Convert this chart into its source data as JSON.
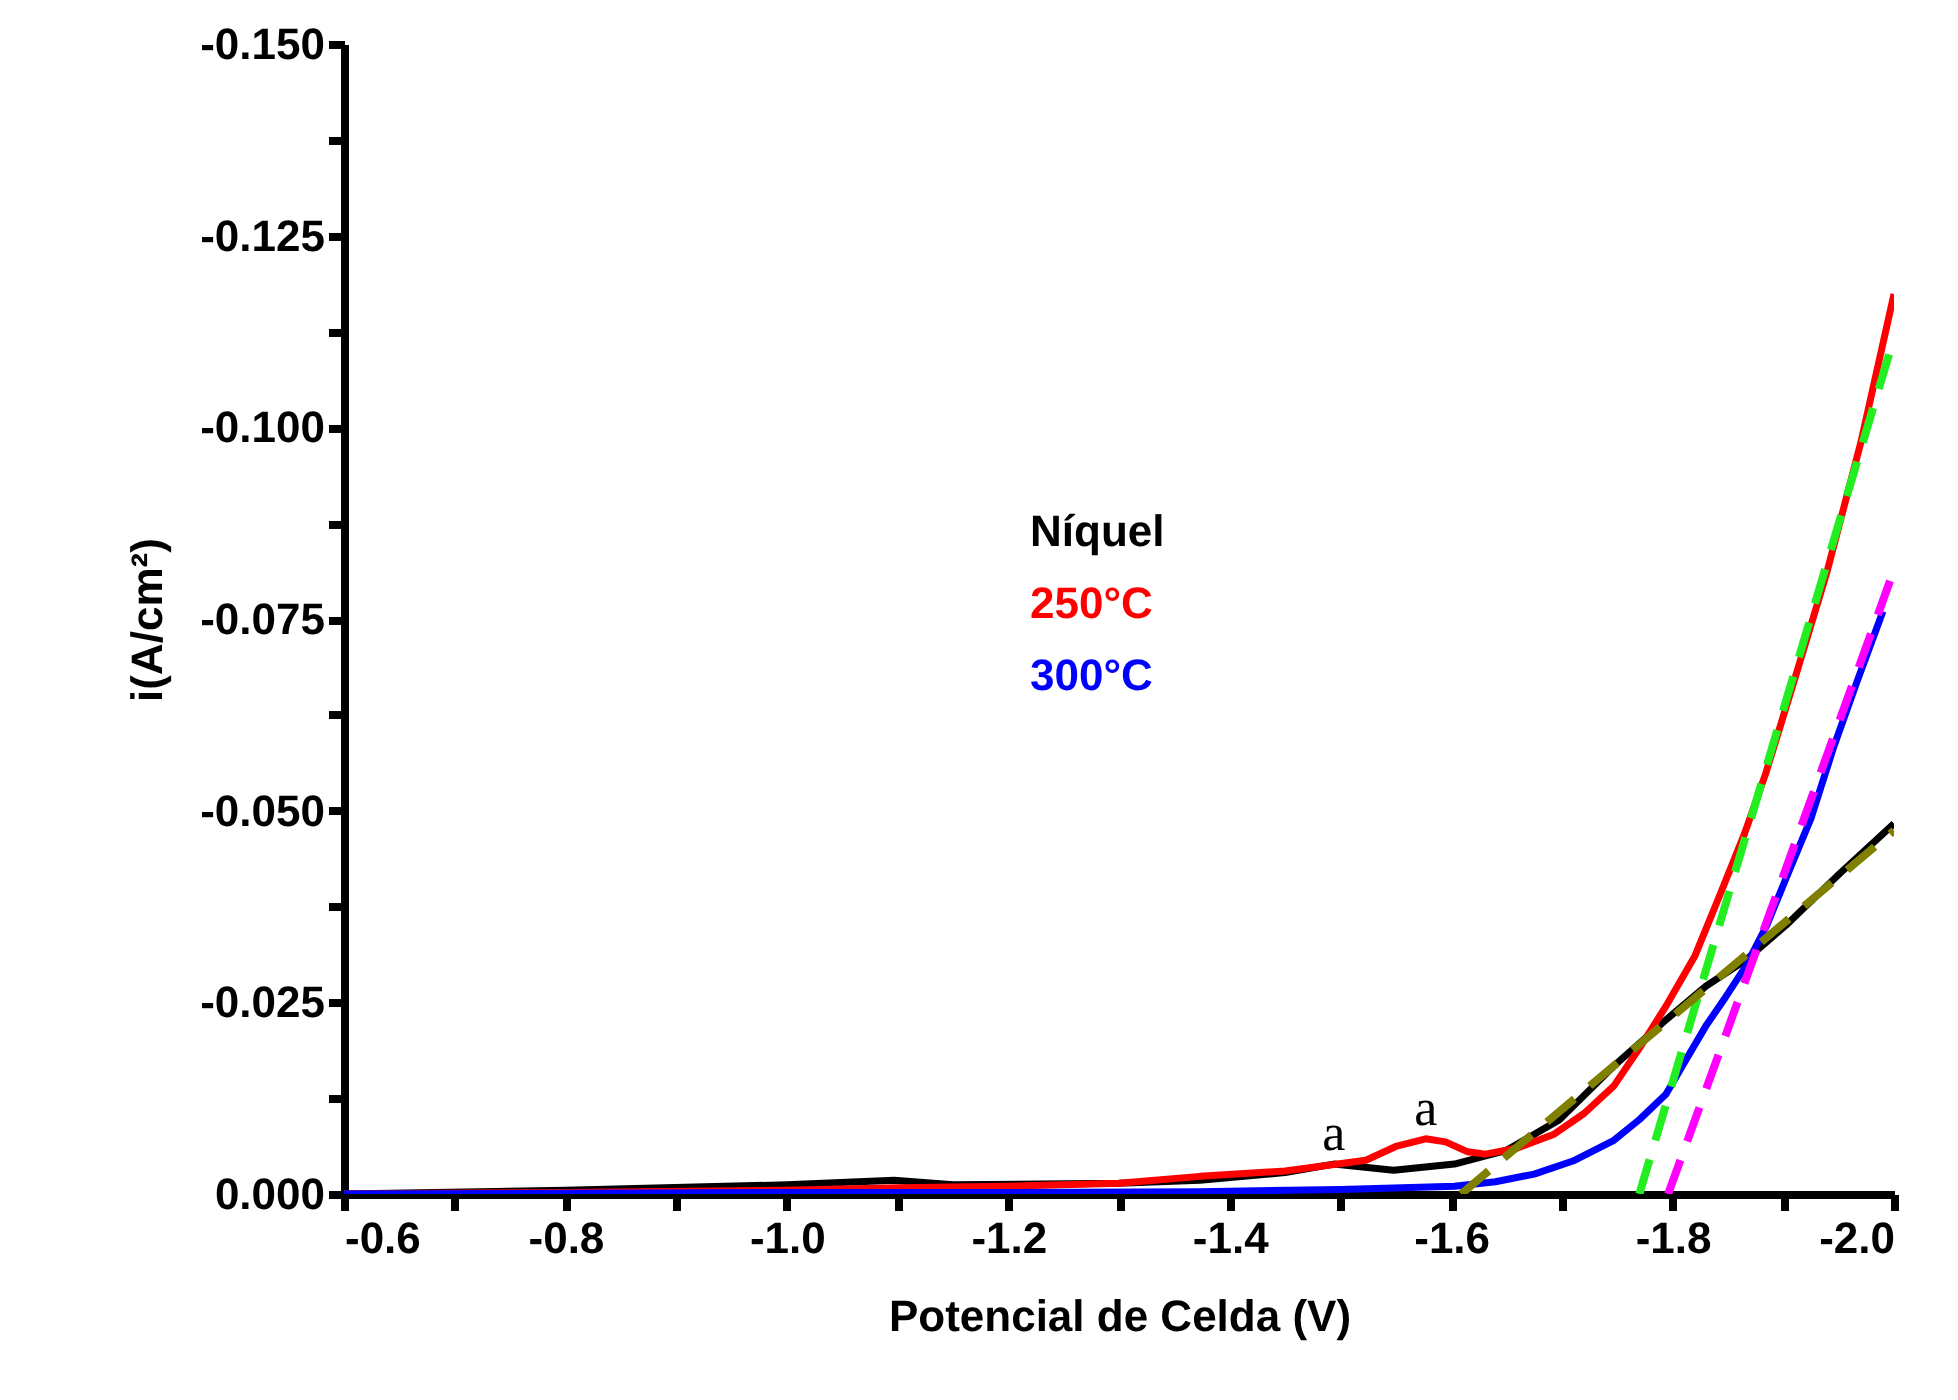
{
  "chart_data": {
    "type": "line",
    "xlabel": "Potencial de Celda (V)",
    "ylabel": "i(A/cm²)",
    "legend_title": "Níquel",
    "legend": "center",
    "line_style": "solid",
    "xlim": [
      -0.6,
      -2.0
    ],
    "ylim": [
      0,
      -0.15
    ],
    "xticks": [
      -0.6,
      {
        "value": -0.7,
        "label": null
      },
      -0.8,
      {
        "value": -0.9,
        "label": null
      },
      {
        "value": -1.0,
        "label": "-1.0"
      },
      {
        "value": -1.1,
        "label": null
      },
      -1.2,
      {
        "value": -1.3,
        "label": null
      },
      -1.4,
      {
        "value": -1.5,
        "label": null
      },
      -1.6,
      {
        "value": -1.7,
        "label": null
      },
      -1.8,
      {
        "value": -1.9,
        "label": null
      },
      {
        "value": -2.0,
        "label": "-2.0"
      }
    ],
    "yticks": [
      {
        "value": 0,
        "label": "0.000"
      },
      {
        "value": -0.0125,
        "label": null
      },
      -0.025,
      {
        "value": -0.0375,
        "label": null
      },
      {
        "value": -0.05,
        "label": "-0.050"
      },
      {
        "value": -0.0625,
        "label": null
      },
      -0.075,
      {
        "value": -0.0875,
        "label": null
      },
      {
        "value": -0.1,
        "label": "-0.100"
      },
      {
        "value": -0.1125,
        "label": null
      },
      -0.125,
      {
        "value": -0.1375,
        "label": null
      },
      {
        "value": -0.15,
        "label": "-0.150"
      }
    ],
    "series": [
      {
        "color": "#000000",
        "x": [
          -0.6,
          -0.8,
          -1.0,
          -1.097,
          -1.15,
          -1.3,
          -1.373,
          -1.45,
          -1.494,
          -1.548,
          -1.603,
          -1.65,
          -1.698,
          -1.747,
          -1.794,
          -1.83,
          -1.866,
          -1.902,
          -1.951,
          -2.0
        ],
        "values": [
          0,
          -0.0005,
          -0.0012,
          -0.0018,
          -0.0012,
          -0.0014,
          -0.0018,
          -0.0028,
          -0.0039,
          -0.0031,
          -0.0039,
          -0.0057,
          -0.0097,
          -0.0167,
          -0.0227,
          -0.0271,
          -0.0305,
          -0.035,
          -0.0418,
          -0.0483
        ]
      },
      {
        "name": "250°C",
        "color": "#ff0000",
        "x": [
          -0.6,
          -0.8,
          -1.0,
          -1.1,
          -1.2,
          -1.3,
          -1.373,
          -1.45,
          -1.523,
          -1.55,
          -1.577,
          -1.595,
          -1.615,
          -1.631,
          -1.66,
          -1.693,
          -1.72,
          -1.747,
          -1.77,
          -1.794,
          -1.82,
          -1.843,
          -1.865,
          -1.884,
          -1.91,
          -1.939,
          -1.97,
          -2.0
        ],
        "values": [
          0,
          -0.0002,
          -0.0005,
          -0.0008,
          -0.001,
          -0.0014,
          -0.0023,
          -0.003,
          -0.0044,
          -0.0062,
          -0.0072,
          -0.0068,
          -0.0055,
          -0.0052,
          -0.006,
          -0.0078,
          -0.0105,
          -0.0141,
          -0.019,
          -0.0245,
          -0.031,
          -0.0391,
          -0.047,
          -0.0548,
          -0.067,
          -0.0809,
          -0.098,
          -0.1174
        ]
      },
      {
        "name": "300°C",
        "color": "#0000ff",
        "x": [
          -0.6,
          -0.8,
          -1.0,
          -1.2,
          -1.373,
          -1.5,
          -1.603,
          -1.64,
          -1.675,
          -1.71,
          -1.747,
          -1.77,
          -1.794,
          -1.81,
          -1.83,
          -1.848,
          -1.866,
          -1.885,
          -1.902,
          -1.925,
          -1.946,
          -1.967,
          -1.99
        ],
        "values": [
          0,
          -0.0001,
          -0.0002,
          -0.0002,
          -0.0003,
          -0.0006,
          -0.001,
          -0.0016,
          -0.0026,
          -0.0043,
          -0.007,
          -0.0097,
          -0.013,
          -0.017,
          -0.0219,
          -0.0257,
          -0.0297,
          -0.035,
          -0.041,
          -0.049,
          -0.0585,
          -0.067,
          -0.076
        ]
      },
      {
        "type": "line",
        "line_style": "dashed",
        "color": "#22ee22",
        "x": [
          -1.77,
          -2.0
        ],
        "values": [
          0,
          -0.1117
        ]
      },
      {
        "type": "line",
        "line_style": "dashed",
        "color": "#ff00ff",
        "x": [
          -1.796,
          -2.0
        ],
        "values": [
          0,
          -0.0814
        ]
      },
      {
        "type": "line",
        "line_style": "dashed",
        "color": "#808000",
        "x": [
          -1.609,
          -2.0
        ],
        "values": [
          0,
          -0.0474
        ]
      }
    ],
    "annotations": [
      {
        "text": "a",
        "x": -1.494,
        "y": -0.0039
      },
      {
        "text": "a",
        "x": -1.577,
        "y": -0.0072
      }
    ]
  }
}
